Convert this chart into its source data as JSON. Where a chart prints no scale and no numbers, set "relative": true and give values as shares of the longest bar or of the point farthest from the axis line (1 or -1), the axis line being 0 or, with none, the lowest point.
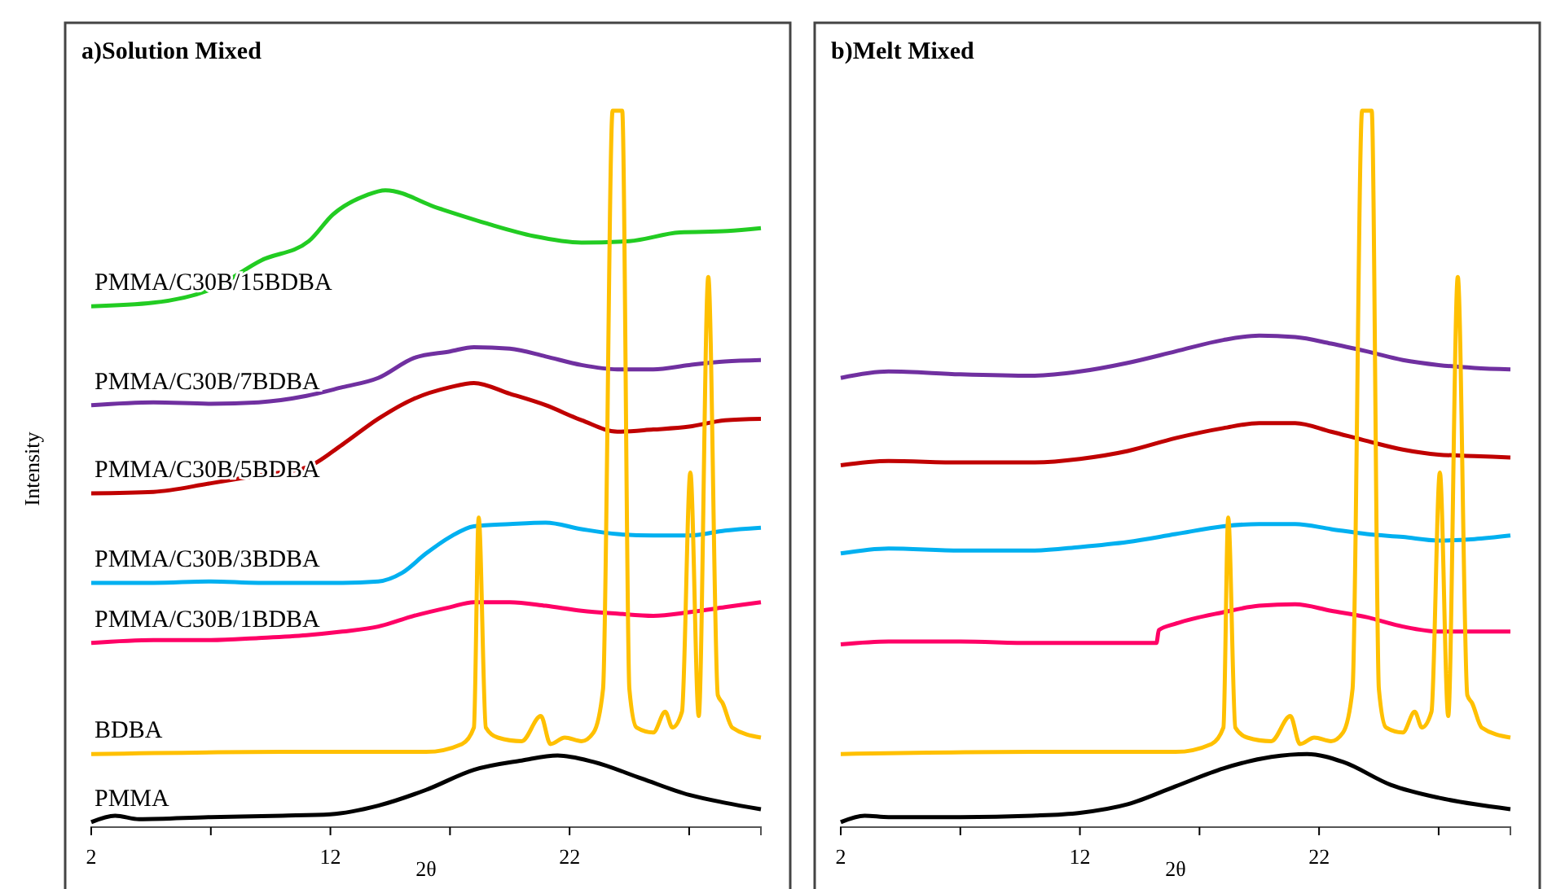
{
  "chart_data": [
    {
      "type": "line",
      "title": "a)Solution Mixed",
      "xlabel": "2θ",
      "ylabel": "Intensity",
      "relative": true,
      "tick_labels": "x",
      "xlim": [
        2,
        30
      ],
      "xticks": [
        2,
        {
          "value": 7,
          "label": null
        },
        12,
        {
          "value": 17,
          "label": null
        },
        22,
        {
          "value": 27,
          "label": null
        }
      ],
      "series": [
        {
          "name": "PMMA/C30B/15BDBA",
          "color": "#22cc22",
          "x": [
            2,
            4.6,
            7.1,
            9.1,
            11.1,
            12.1,
            13.5,
            14.3,
            16.5,
            18.5,
            20.5,
            22.5,
            24.5,
            26.6,
            28.6,
            30
          ],
          "values": [
            0.727,
            0.732,
            0.752,
            0.791,
            0.818,
            0.855,
            0.882,
            0.889,
            0.864,
            0.843,
            0.825,
            0.816,
            0.818,
            0.83,
            0.832,
            0.836
          ]
        },
        {
          "name": "PMMA/C30B/7BDBA",
          "color": "#7030a0",
          "x": [
            2,
            4.6,
            7,
            9,
            11,
            12.5,
            14,
            15.5,
            17,
            18,
            19.5,
            21,
            22.5,
            24,
            25.5,
            27,
            28.5,
            30
          ],
          "values": [
            0.589,
            0.593,
            0.591,
            0.593,
            0.602,
            0.614,
            0.627,
            0.655,
            0.664,
            0.67,
            0.668,
            0.657,
            0.645,
            0.639,
            0.639,
            0.645,
            0.65,
            0.652
          ]
        },
        {
          "name": "PMMA/C30B/5BDBA",
          "color": "#c00000",
          "x": [
            2,
            4.6,
            7,
            9,
            11,
            12.5,
            14,
            15.5,
            17,
            18,
            19.5,
            21,
            22.5,
            24,
            25.5,
            27,
            28.5,
            30
          ],
          "values": [
            0.466,
            0.468,
            0.48,
            0.491,
            0.502,
            0.534,
            0.57,
            0.598,
            0.614,
            0.62,
            0.605,
            0.589,
            0.568,
            0.552,
            0.555,
            0.559,
            0.568,
            0.57
          ]
        },
        {
          "name": "PMMA/C30B/3BDBA",
          "color": "#00b0f0",
          "x": [
            2,
            4.6,
            7,
            9,
            11,
            12.5,
            14,
            15,
            16,
            17,
            18,
            19.5,
            21,
            22.5,
            24,
            25.5,
            27,
            28.5,
            30
          ],
          "values": [
            0.341,
            0.341,
            0.343,
            0.341,
            0.341,
            0.341,
            0.343,
            0.355,
            0.382,
            0.405,
            0.42,
            0.423,
            0.425,
            0.416,
            0.409,
            0.407,
            0.407,
            0.414,
            0.418
          ]
        },
        {
          "name": "PMMA/C30B/1BDBA",
          "color": "#ff0066",
          "x": [
            2,
            4.6,
            7,
            9,
            11,
            12.5,
            14,
            15.5,
            17,
            18,
            19.5,
            21,
            22.5,
            24,
            25.5,
            27,
            28.5,
            30
          ],
          "values": [
            0.257,
            0.261,
            0.261,
            0.264,
            0.268,
            0.273,
            0.28,
            0.295,
            0.307,
            0.314,
            0.314,
            0.309,
            0.302,
            0.298,
            0.295,
            0.3,
            0.307,
            0.314
          ]
        },
        {
          "name": "BDBA",
          "color": "#ffc000",
          "x": [
            2,
            10,
            16,
            17.5,
            18,
            18.2,
            18.5,
            19,
            20,
            20.8,
            21.2,
            21.8,
            22.5,
            23,
            23.4,
            23.8,
            24.2,
            24.5,
            24.8,
            25.5,
            26,
            26.3,
            26.7,
            27.05,
            27.4,
            27.8,
            28.2,
            28.4,
            28.8,
            30
          ],
          "values": [
            0.102,
            0.105,
            0.105,
            0.116,
            0.139,
            0.432,
            0.139,
            0.125,
            0.12,
            0.155,
            0.116,
            0.125,
            0.12,
            0.132,
            0.193,
            1,
            1,
            0.193,
            0.139,
            0.132,
            0.161,
            0.139,
            0.161,
            0.495,
            0.155,
            0.768,
            0.184,
            0.173,
            0.139,
            0.125
          ]
        },
        {
          "name": "PMMA",
          "color": "#000000",
          "x": [
            2,
            3,
            4,
            7,
            10,
            12,
            14,
            16,
            18,
            20,
            21.5,
            23,
            25,
            27,
            28.5,
            30
          ],
          "values": [
            0.007,
            0.016,
            0.011,
            0.014,
            0.016,
            0.018,
            0.03,
            0.052,
            0.08,
            0.093,
            0.1,
            0.091,
            0.068,
            0.045,
            0.034,
            0.025
          ]
        }
      ]
    },
    {
      "type": "line",
      "title": "b)Melt Mixed",
      "xlabel": "2θ",
      "relative": true,
      "tick_labels": "x",
      "xlim": [
        2,
        30
      ],
      "xticks": [
        2,
        {
          "value": 7,
          "label": null
        },
        12,
        {
          "value": 17,
          "label": null
        },
        22,
        {
          "value": 27,
          "label": null
        }
      ],
      "series": [
        {
          "color": "#7030a0",
          "x": [
            2,
            4,
            7,
            10,
            12,
            14,
            16,
            18,
            19.5,
            21,
            22.5,
            24,
            25.5,
            27,
            28.5,
            30
          ],
          "values": [
            0.627,
            0.636,
            0.632,
            0.63,
            0.636,
            0.648,
            0.664,
            0.68,
            0.686,
            0.684,
            0.675,
            0.664,
            0.652,
            0.645,
            0.641,
            0.639
          ]
        },
        {
          "color": "#c00000",
          "x": [
            2,
            4,
            7,
            10,
            12,
            14,
            16,
            18,
            19.5,
            21,
            22.5,
            24,
            25.5,
            27,
            28.5,
            30
          ],
          "values": [
            0.505,
            0.511,
            0.509,
            0.509,
            0.514,
            0.525,
            0.543,
            0.557,
            0.564,
            0.564,
            0.552,
            0.539,
            0.527,
            0.52,
            0.518,
            0.516
          ]
        },
        {
          "color": "#00b0f0",
          "x": [
            2,
            4,
            7,
            10,
            12,
            14,
            16,
            18,
            19.5,
            21,
            22.5,
            24,
            25.5,
            27,
            28.5,
            30
          ],
          "values": [
            0.382,
            0.389,
            0.386,
            0.386,
            0.391,
            0.398,
            0.409,
            0.42,
            0.423,
            0.423,
            0.416,
            0.409,
            0.405,
            0.4,
            0.402,
            0.407
          ]
        },
        {
          "color": "#ff0066",
          "x": [
            2,
            4,
            7,
            10,
            12,
            14,
            15.2,
            15.3,
            16,
            18,
            19.5,
            21,
            22.5,
            24,
            25.5,
            27,
            28.5,
            30
          ],
          "values": [
            0.255,
            0.259,
            0.259,
            0.257,
            0.257,
            0.257,
            0.257,
            0.275,
            0.284,
            0.3,
            0.309,
            0.311,
            0.302,
            0.293,
            0.28,
            0.273,
            0.273,
            0.273
          ]
        },
        {
          "color": "#ffc000",
          "x": [
            2,
            10,
            16,
            17.5,
            18,
            18.2,
            18.5,
            19,
            20,
            20.8,
            21.2,
            21.8,
            22.5,
            23,
            23.4,
            23.8,
            24.2,
            24.5,
            24.8,
            25.5,
            26,
            26.3,
            26.7,
            27.05,
            27.4,
            27.8,
            28.2,
            28.4,
            28.8,
            30
          ],
          "values": [
            0.102,
            0.105,
            0.105,
            0.116,
            0.139,
            0.432,
            0.139,
            0.125,
            0.12,
            0.155,
            0.116,
            0.125,
            0.12,
            0.132,
            0.193,
            1,
            1,
            0.193,
            0.139,
            0.132,
            0.161,
            0.139,
            0.161,
            0.495,
            0.155,
            0.768,
            0.184,
            0.173,
            0.139,
            0.125
          ]
        },
        {
          "color": "#000000",
          "x": [
            2,
            3,
            4,
            7,
            10,
            12,
            14,
            16,
            18,
            20,
            21.5,
            23,
            25,
            27,
            28.5,
            30
          ],
          "values": [
            0.007,
            0.016,
            0.014,
            0.014,
            0.016,
            0.02,
            0.032,
            0.057,
            0.082,
            0.098,
            0.102,
            0.091,
            0.059,
            0.041,
            0.032,
            0.025
          ]
        }
      ]
    }
  ]
}
